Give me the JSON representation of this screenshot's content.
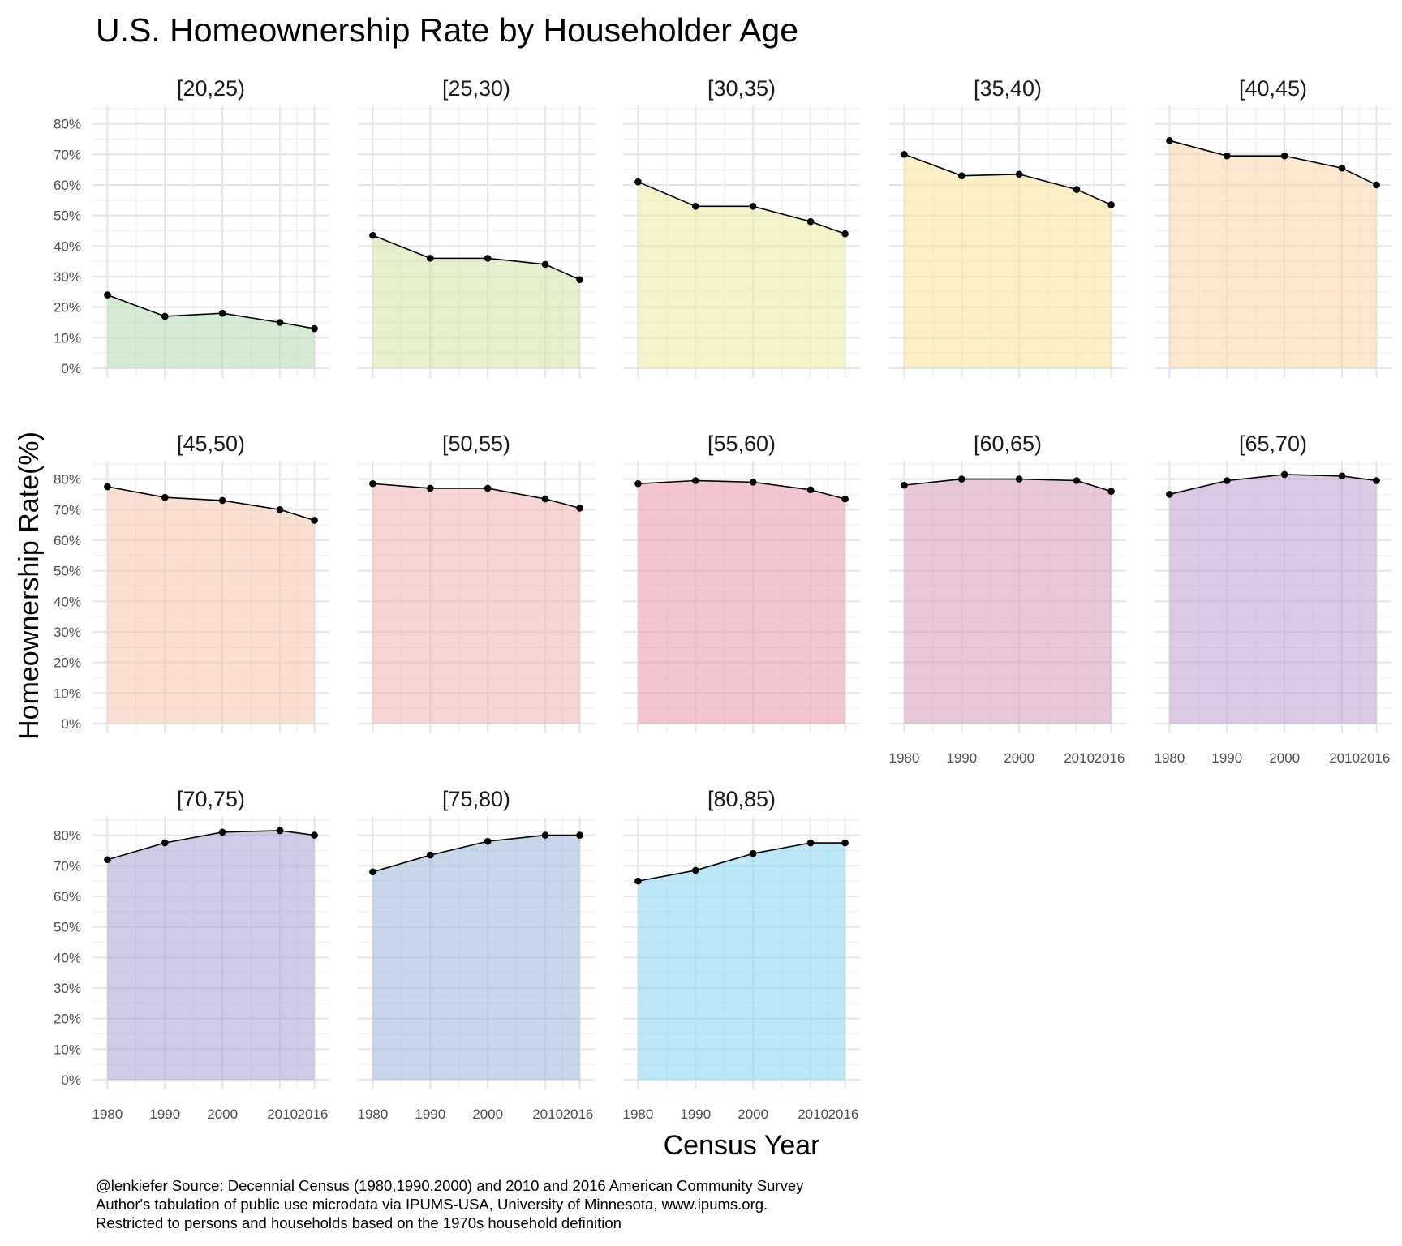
{
  "chart_data": {
    "type": "area",
    "title": "U.S. Homeownership Rate by Householder Age",
    "xlabel": "Census Year",
    "ylabel": "Homeownership Rate(%)",
    "x": [
      1980,
      1990,
      2000,
      2010,
      2016
    ],
    "x_tick_labels": [
      "1980",
      "1990",
      "2000",
      "2010",
      "2016"
    ],
    "y_tick_labels": [
      "0%",
      "10%",
      "20%",
      "30%",
      "40%",
      "50%",
      "60%",
      "70%",
      "80%"
    ],
    "y_ticks": [
      0,
      0.1,
      0.2,
      0.3,
      0.4,
      0.5,
      0.6,
      0.7,
      0.8
    ],
    "ylim": [
      0,
      0.86
    ],
    "grid": true,
    "legend": "none",
    "facets": [
      {
        "name": "[20,25)",
        "color": "#b4dab1",
        "values": [
          0.24,
          0.17,
          0.18,
          0.15,
          0.13
        ]
      },
      {
        "name": "[25,30)",
        "color": "#d2e3a8",
        "values": [
          0.435,
          0.36,
          0.36,
          0.34,
          0.29
        ]
      },
      {
        "name": "[30,35)",
        "color": "#ede99d",
        "values": [
          0.61,
          0.53,
          0.53,
          0.48,
          0.44
        ]
      },
      {
        "name": "[35,40)",
        "color": "#f6e195",
        "values": [
          0.7,
          0.63,
          0.635,
          0.585,
          0.535
        ]
      },
      {
        "name": "[40,45)",
        "color": "#f9d6a6",
        "values": [
          0.745,
          0.695,
          0.695,
          0.655,
          0.6
        ]
      },
      {
        "name": "[45,50)",
        "color": "#f6c5b3",
        "values": [
          0.775,
          0.74,
          0.73,
          0.7,
          0.665
        ]
      },
      {
        "name": "[50,55)",
        "color": "#f1b2b1",
        "values": [
          0.785,
          0.77,
          0.77,
          0.735,
          0.705
        ]
      },
      {
        "name": "[55,60)",
        "color": "#e995aa",
        "values": [
          0.785,
          0.795,
          0.79,
          0.765,
          0.735
        ]
      },
      {
        "name": "[60,65)",
        "color": "#d59bb8",
        "values": [
          0.78,
          0.8,
          0.8,
          0.795,
          0.76
        ]
      },
      {
        "name": "[65,70)",
        "color": "#c09fce",
        "values": [
          0.75,
          0.795,
          0.815,
          0.81,
          0.795
        ]
      },
      {
        "name": "[70,75)",
        "color": "#ab9fd4",
        "values": [
          0.72,
          0.775,
          0.81,
          0.815,
          0.8
        ]
      },
      {
        "name": "[75,80)",
        "color": "#99b4d8",
        "values": [
          0.68,
          0.735,
          0.78,
          0.8,
          0.8
        ]
      },
      {
        "name": "[80,85)",
        "color": "#83d4f1",
        "values": [
          0.65,
          0.685,
          0.74,
          0.775,
          0.775
        ]
      }
    ],
    "caption": [
      "@lenkiefer Source: Decennial Census (1980,1990,2000) and 2010 and 2016 American Community Survey",
      "Author's tabulation of public use microdata via IPUMS-USA, University of Minnesota, www.ipums.org.",
      "Restricted to persons and households based on the 1970s household definition"
    ]
  }
}
